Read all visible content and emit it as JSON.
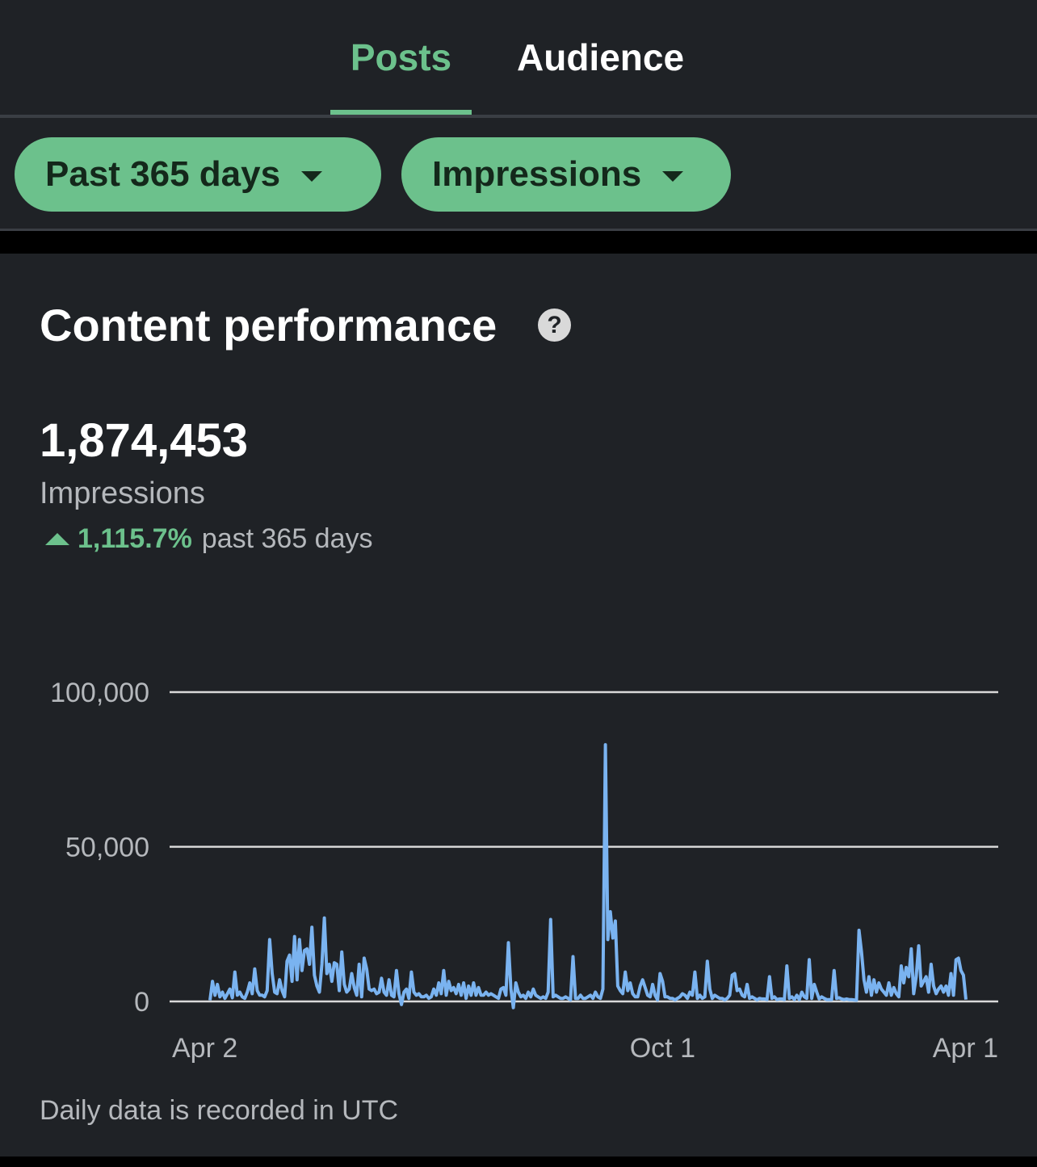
{
  "tabs": [
    {
      "label": "Posts",
      "active": true
    },
    {
      "label": "Audience",
      "active": false
    }
  ],
  "filters": {
    "range_label": "Past 365 days",
    "metric_label": "Impressions"
  },
  "card": {
    "title": "Content performance",
    "help_icon": "?",
    "total": "1,874,453",
    "metric": "Impressions",
    "change_value": "1,115.7%",
    "change_period": "past 365 days",
    "footnote": "Daily data is recorded in UTC"
  },
  "colors": {
    "accent": "#6cc18c",
    "line": "#7ab3f0",
    "background": "#1f2226"
  },
  "chart_data": {
    "type": "line",
    "title": "",
    "xlabel": "",
    "ylabel": "",
    "ylim": [
      0,
      100000
    ],
    "yticks": [
      {
        "value": 0,
        "label": "0"
      },
      {
        "value": 50000,
        "label": "50,000"
      },
      {
        "value": 100000,
        "label": "100,000"
      }
    ],
    "xticks": [
      {
        "day": 0,
        "label": "Apr 2"
      },
      {
        "day": 182,
        "label": "Oct 1"
      },
      {
        "day": 364,
        "label": "Apr 1"
      }
    ],
    "grid": true,
    "series": [
      {
        "values": [
          400,
          6500,
          2000,
          5500,
          1500,
          3000,
          1000,
          2500,
          4000,
          1200,
          9500,
          2000,
          3000,
          1500,
          1000,
          3000,
          6000,
          2500,
          10500,
          3500,
          2000,
          2000,
          1500,
          3500,
          20000,
          9000,
          3000,
          2500,
          7000,
          3500,
          1500,
          13000,
          15000,
          6500,
          21000,
          7000,
          20000,
          10000,
          16500,
          17000,
          12000,
          24000,
          8500,
          5000,
          3000,
          12000,
          27000,
          9000,
          12000,
          6500,
          12500,
          12000,
          3500,
          16000,
          5500,
          3000,
          4000,
          9000,
          4500,
          2000,
          12000,
          1500,
          14000,
          10500,
          4000,
          3500,
          4000,
          2500,
          3000,
          7500,
          3000,
          2000,
          7000,
          2000,
          1500,
          10000,
          2500,
          -1000,
          3000,
          4000,
          1000,
          9500,
          3000,
          2000,
          2500,
          1500,
          1500,
          2000,
          1000,
          1500,
          4000,
          2000,
          6000,
          2500,
          10000,
          2000,
          6500,
          3500,
          4500,
          2500,
          5500,
          2000,
          6000,
          1000,
          5000,
          2000,
          6000,
          2000,
          4500,
          2000,
          2000,
          3000,
          2000,
          2500,
          2000,
          1500,
          1000,
          4000,
          4500,
          2000,
          19000,
          4000,
          -2000,
          6000,
          3000,
          1500,
          2000,
          1000,
          3000,
          1500,
          4000,
          2000,
          1500,
          1000,
          1500,
          1000,
          3000,
          26500,
          1500,
          2000,
          1500,
          1000,
          1000,
          1500,
          1000,
          500,
          14500,
          1000,
          1000,
          2000,
          1000,
          1000,
          1500,
          2000,
          1000,
          3000,
          1500,
          1000,
          4000,
          83000,
          20000,
          29000,
          20500,
          26000,
          5000,
          3500,
          2500,
          9500,
          3500,
          6000,
          2500,
          1500,
          1500,
          5000,
          7000,
          4500,
          2000,
          1500,
          5500,
          2000,
          500,
          9000,
          6500,
          1500,
          1500,
          1000,
          1000,
          500,
          1000,
          1500,
          2500,
          2000,
          1000,
          3000,
          2000,
          9500,
          1000,
          2000,
          1000,
          1500,
          13000,
          4000,
          1000,
          2000,
          1500,
          1000,
          1000,
          500,
          1000,
          2000,
          8500,
          9000,
          3500,
          4000,
          2000,
          1500,
          5500,
          1000,
          1500,
          1000,
          500,
          1000,
          800,
          800,
          600,
          8000,
          1000,
          1500,
          600,
          800,
          800,
          600,
          11500,
          1000,
          1500,
          600,
          2000,
          600,
          3000,
          1500,
          1000,
          13500,
          1000,
          5500,
          3000,
          800,
          1500,
          1000,
          600,
          600,
          600,
          10000,
          1000,
          1200,
          800,
          600,
          800,
          600,
          600,
          500,
          400,
          23000,
          16000,
          7000,
          3000,
          8000,
          2000,
          7000,
          3000,
          6000,
          4000,
          3000,
          2000,
          6000,
          2000,
          4500,
          2500,
          1500,
          11500,
          6000,
          11000,
          8000,
          17000,
          2500,
          8000,
          18000,
          5000,
          6500,
          8000,
          3000,
          12000,
          5000,
          2500,
          4000,
          5000,
          3000,
          5000,
          2000,
          9000,
          2000,
          13500,
          14000,
          10000,
          8500,
          600
        ]
      }
    ]
  }
}
